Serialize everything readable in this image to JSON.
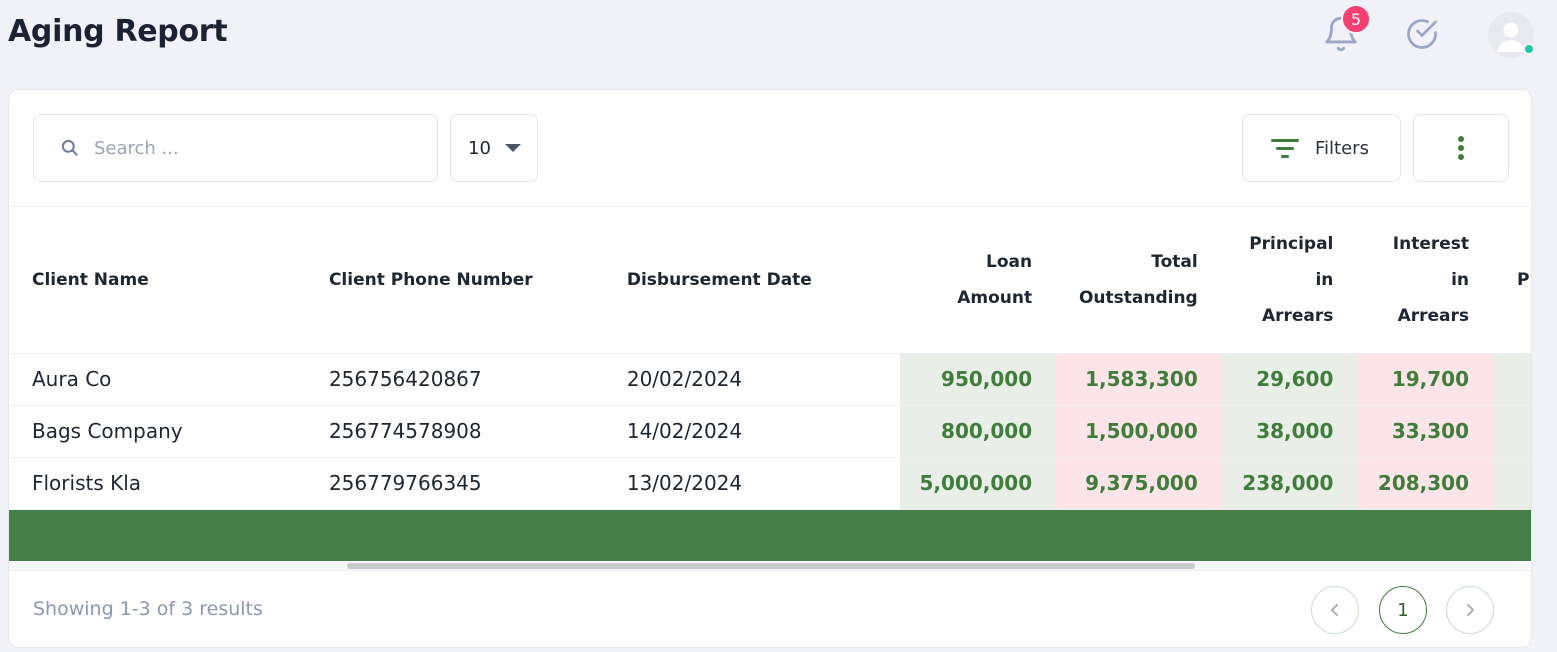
{
  "header": {
    "title": "Aging Report",
    "notification_count": "5"
  },
  "toolbar": {
    "search_placeholder": "Search ...",
    "page_size": "10",
    "filters_label": "Filters"
  },
  "table": {
    "columns": [
      "Client Name",
      "Client Phone Number",
      "Disbursement Date",
      [
        "Loan",
        "Amount"
      ],
      [
        "Total",
        "Outstanding"
      ],
      [
        "Principal",
        "in",
        "Arrears"
      ],
      [
        "Interest",
        "in",
        "Arrears"
      ],
      "P"
    ],
    "rows": [
      [
        "Aura Co",
        "256756420867",
        "20/02/2024",
        "950,000",
        "1,583,300",
        "29,600",
        "19,700"
      ],
      [
        "Bags Company",
        "256774578908",
        "14/02/2024",
        "800,000",
        "1,500,000",
        "38,000",
        "33,300"
      ],
      [
        "Florists Kla",
        "256779766345",
        "13/02/2024",
        "5,000,000",
        "9,375,000",
        "238,000",
        "208,300"
      ]
    ]
  },
  "footer": {
    "showing": "Showing 1-3 of 3 results",
    "current_page": "1"
  },
  "colors": {
    "accent_green": "#45804b",
    "value_green": "#3e7d3a",
    "badge_pink": "#f43f6f",
    "highlight_green_bg": "#e9efe8",
    "highlight_red_bg": "#fde4e8"
  }
}
